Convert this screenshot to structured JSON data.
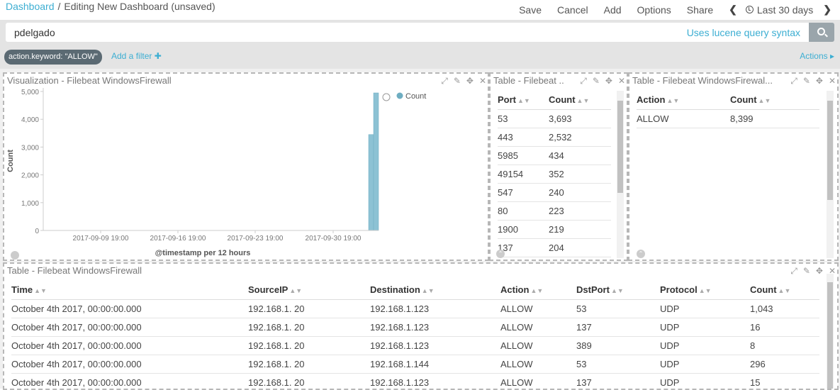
{
  "topbar": {
    "crumb_root": "Dashboard",
    "crumb_sep": "/",
    "crumb_current": "Editing New Dashboard (unsaved)",
    "menu": [
      "Save",
      "Cancel",
      "Add",
      "Options",
      "Share"
    ],
    "time_label": "Last 30 days"
  },
  "query": {
    "value": "pdelgado",
    "hint": "Uses lucene query syntax"
  },
  "filters": {
    "pill": "action.keyword: \"ALLOW\"",
    "add": "Add a filter",
    "actions": "Actions"
  },
  "viz": {
    "title": "Visualization - Filebeat WindowsFirewall",
    "legend": "Count"
  },
  "chart_data": {
    "type": "bar",
    "xlabel": "@timestamp per 12 hours",
    "ylabel": "Count",
    "ylim": [
      0,
      5000
    ],
    "yticks": [
      "0",
      "1,000",
      "2,000",
      "3,000",
      "4,000",
      "5,000"
    ],
    "xticks": [
      "2017-09-09 19:00",
      "2017-09-16 19:00",
      "2017-09-23 19:00",
      "2017-09-30 19:00"
    ],
    "series": [
      {
        "name": "Count",
        "x": [
          "2017-10-03 19:00",
          "2017-10-04 07:00"
        ],
        "values": [
          3450,
          4949
        ]
      }
    ],
    "color": "#8dc2d4",
    "legend_position": "top-right"
  },
  "portTable": {
    "title": "Table - Filebeat ...",
    "headers": [
      "Port",
      "Count"
    ],
    "rows": [
      [
        "53",
        "3,693"
      ],
      [
        "443",
        "2,532"
      ],
      [
        "5985",
        "434"
      ],
      [
        "49154",
        "352"
      ],
      [
        "547",
        "240"
      ],
      [
        "80",
        "223"
      ],
      [
        "1900",
        "219"
      ],
      [
        "137",
        "204"
      ]
    ]
  },
  "actionTable": {
    "title": "Table - Filebeat WindowsFirewal...",
    "headers": [
      "Action",
      "Count"
    ],
    "rows": [
      [
        "ALLOW",
        "8,399"
      ]
    ]
  },
  "logTable": {
    "title": "Table - Filebeat WindowsFirewall",
    "headers": [
      "Time",
      "SourceIP",
      "Destination",
      "Action",
      "DstPort",
      "Protocol",
      "Count"
    ],
    "rows": [
      [
        "October 4th 2017, 00:00:00.000",
        "192.168.1. 20",
        "192.168.1.123",
        "ALLOW",
        "53",
        "UDP",
        "1,043"
      ],
      [
        "October 4th 2017, 00:00:00.000",
        "192.168.1. 20",
        "192.168.1.123",
        "ALLOW",
        "137",
        "UDP",
        "16"
      ],
      [
        "October 4th 2017, 00:00:00.000",
        "192.168.1. 20",
        "192.168.1.123",
        "ALLOW",
        "389",
        "UDP",
        "8"
      ],
      [
        "October 4th 2017, 00:00:00.000",
        "192.168.1. 20",
        "192.168.1.144",
        "ALLOW",
        "53",
        "UDP",
        "296"
      ],
      [
        "October 4th 2017, 00:00:00.000",
        "192.168.1. 20",
        "192.168.1.123",
        "ALLOW",
        "137",
        "UDP",
        "15"
      ]
    ]
  }
}
